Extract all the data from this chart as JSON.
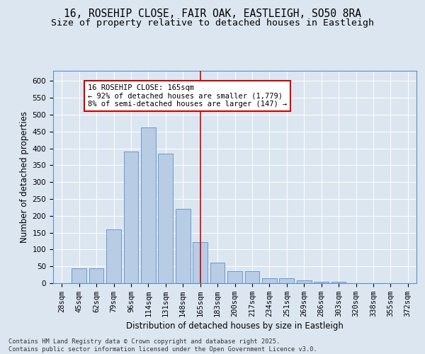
{
  "title_line1": "16, ROSEHIP CLOSE, FAIR OAK, EASTLEIGH, SO50 8RA",
  "title_line2": "Size of property relative to detached houses in Eastleigh",
  "xlabel": "Distribution of detached houses by size in Eastleigh",
  "ylabel": "Number of detached properties",
  "categories": [
    "28sqm",
    "45sqm",
    "62sqm",
    "79sqm",
    "96sqm",
    "114sqm",
    "131sqm",
    "148sqm",
    "165sqm",
    "183sqm",
    "200sqm",
    "217sqm",
    "234sqm",
    "251sqm",
    "269sqm",
    "286sqm",
    "303sqm",
    "320sqm",
    "338sqm",
    "355sqm",
    "372sqm"
  ],
  "values": [
    0,
    44,
    44,
    160,
    390,
    463,
    385,
    220,
    122,
    60,
    35,
    35,
    15,
    15,
    8,
    5,
    5,
    0,
    0,
    0,
    0
  ],
  "bar_color": "#b8cce4",
  "bar_edge_color": "#5b8fc9",
  "vline_x": 8,
  "vline_color": "#cc0000",
  "annotation_text": "16 ROSEHIP CLOSE: 165sqm\n← 92% of detached houses are smaller (1,779)\n8% of semi-detached houses are larger (147) →",
  "annotation_box_color": "#ffffff",
  "annotation_box_edge": "#cc0000",
  "ylim": [
    0,
    630
  ],
  "yticks": [
    0,
    50,
    100,
    150,
    200,
    250,
    300,
    350,
    400,
    450,
    500,
    550,
    600
  ],
  "bg_color": "#dce6f1",
  "plot_bg_color": "#dce6f1",
  "footer_text": "Contains HM Land Registry data © Crown copyright and database right 2025.\nContains public sector information licensed under the Open Government Licence v3.0.",
  "title_fontsize": 10.5,
  "subtitle_fontsize": 9.5,
  "axis_label_fontsize": 8.5,
  "tick_fontsize": 7.5
}
